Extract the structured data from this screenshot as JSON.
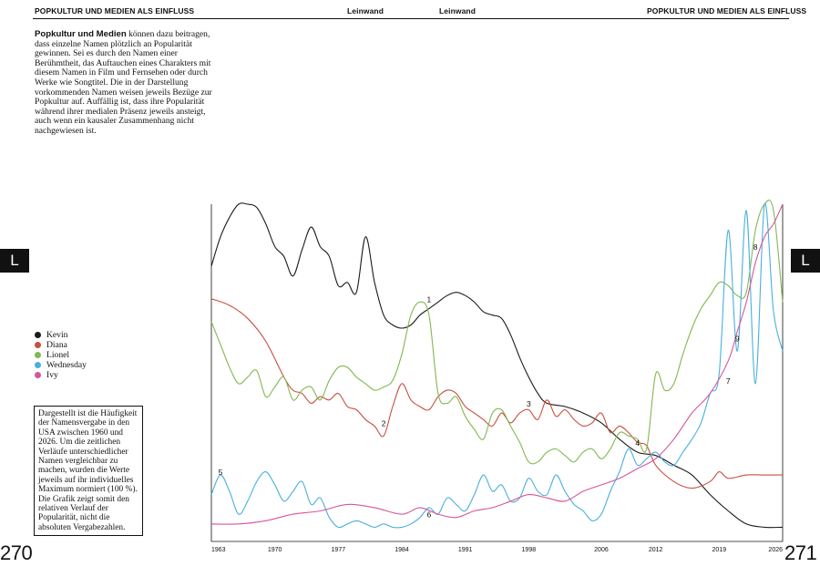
{
  "header": {
    "left": "POPKULTUR UND MEDIEN ALS EINFLUSS",
    "center_left": "Leinwand",
    "center_right": "Leinwand",
    "right": "POPKULTUR UND MEDIEN ALS EINFLUSS"
  },
  "intro": {
    "lead": "Popkultur und Medien",
    "body": " können dazu beitragen, dass einzelne Namen plötzlich an Popularität gewinnen. Sei es durch den Namen einer Berühmtheit, das Auftauchen eines Charakters mit diesem Namen in Film und Fernsehen oder durch Werke wie Songtitel. Die in der Darstellung vorkommenden Namen weisen jeweils Bezüge zur Popkultur auf. Auffällig ist, dass ihre Popularität während ihrer medialen Präsenz jeweils ansteigt, auch wenn ein kausaler Zusammenhang nicht nachgewiesen ist."
  },
  "section_tab": {
    "left": "L",
    "right": "L"
  },
  "note": "Dargestellt ist die Häufigkeit der Namensvergabe in den USA zwischen 1960 und 2026. Um die zeitlichen Verläufe unterschiedlicher Namen vergleichbar zu machen, wurden die Werte jeweils auf ihr individuelles Maximum normiert (100 %). Die Grafik zeigt somit den relativen Verlauf der Popularität, nicht die absoluten Vergabezahlen.",
  "page_numbers": {
    "left": "270",
    "right": "271"
  },
  "colors": {
    "Kevin": "#1a1a1a",
    "Diana": "#c94f3f",
    "Lionel": "#82b850",
    "Wednesday": "#49b0dd",
    "Ivy": "#d6559a"
  },
  "chart_data": {
    "type": "line",
    "x_unit": "year",
    "y_unit": "percent of individual maximum",
    "xlim": [
      1963,
      2026
    ],
    "ylim": [
      0,
      100
    ],
    "x_ticks": [
      1963,
      1970,
      1977,
      1984,
      1991,
      1998,
      2006,
      2012,
      2019,
      2026
    ],
    "grid": false,
    "legend_position": "left",
    "series": [
      {
        "name": "Kevin",
        "color": "#1a1a1a",
        "x": [
          1963,
          1964,
          1965,
          1966,
          1967,
          1968,
          1969,
          1970,
          1971,
          1972,
          1973,
          1974,
          1975,
          1976,
          1977,
          1978,
          1979,
          1980,
          1981,
          1982,
          1983,
          1984,
          1985,
          1986,
          1987,
          1988,
          1989,
          1990,
          1991,
          1992,
          1993,
          1994,
          1995,
          1996,
          1997,
          1998,
          1999,
          2000,
          2002,
          2004,
          2006,
          2008,
          2010,
          2012,
          2014,
          2016,
          2018,
          2020,
          2022,
          2024,
          2026
        ],
        "y": [
          81,
          90,
          96,
          100,
          100,
          99,
          94,
          87,
          84,
          78,
          86,
          93,
          87,
          84,
          75,
          76,
          73,
          90,
          76,
          66,
          63,
          62,
          63,
          66,
          68,
          70,
          72,
          73,
          72,
          70,
          67,
          66,
          65,
          60,
          53,
          47,
          42,
          39,
          38,
          36,
          33,
          28,
          24,
          23,
          20,
          17,
          11,
          6,
          2,
          1,
          1
        ]
      },
      {
        "name": "Diana",
        "color": "#c94f3f",
        "x": [
          1963,
          1965,
          1967,
          1969,
          1971,
          1972,
          1973,
          1974,
          1975,
          1976,
          1977,
          1978,
          1979,
          1980,
          1981,
          1982,
          1983,
          1984,
          1985,
          1986,
          1987,
          1988,
          1989,
          1990,
          1991,
          1992,
          1993,
          1994,
          1995,
          1996,
          1997,
          1998,
          1999,
          2000,
          2001,
          2002,
          2003,
          2004,
          2005,
          2006,
          2007,
          2008,
          2009,
          2010,
          2011,
          2012,
          2014,
          2016,
          2018,
          2019,
          2020,
          2022,
          2024,
          2026
        ],
        "y": [
          71,
          69,
          65,
          58,
          47,
          43,
          42,
          39,
          41,
          40,
          42,
          38,
          37,
          34,
          32,
          29,
          38,
          45,
          40,
          38,
          37,
          41,
          43,
          42,
          38,
          36,
          34,
          32,
          36,
          33,
          36,
          37,
          34,
          40,
          35,
          37,
          34,
          32,
          33,
          36,
          30,
          32,
          30,
          27,
          26,
          20,
          15,
          13,
          15,
          18,
          16,
          17,
          17,
          17
        ]
      },
      {
        "name": "Lionel",
        "color": "#82b850",
        "x": [
          1963,
          1964,
          1965,
          1966,
          1967,
          1968,
          1969,
          1970,
          1971,
          1972,
          1973,
          1974,
          1975,
          1976,
          1977,
          1978,
          1979,
          1980,
          1981,
          1982,
          1983,
          1984,
          1985,
          1986,
          1987,
          1988,
          1989,
          1990,
          1991,
          1992,
          1993,
          1994,
          1995,
          1996,
          1997,
          1998,
          1999,
          2000,
          2001,
          2002,
          2003,
          2004,
          2005,
          2006,
          2007,
          2008,
          2009,
          2010,
          2011,
          2012,
          2013,
          2014,
          2015,
          2016,
          2017,
          2018,
          2019,
          2020,
          2021,
          2022,
          2023,
          2024,
          2025,
          2026
        ],
        "y": [
          64,
          57,
          50,
          45,
          47,
          49,
          41,
          44,
          47,
          40,
          43,
          44,
          40,
          46,
          50,
          50,
          47,
          45,
          43,
          44,
          46,
          54,
          66,
          70,
          66,
          42,
          39,
          41,
          35,
          31,
          28,
          36,
          37,
          32,
          27,
          21,
          21,
          24,
          25,
          23,
          21,
          24,
          25,
          22,
          25,
          30,
          29,
          28,
          25,
          48,
          43,
          45,
          54,
          62,
          68,
          72,
          76,
          75,
          72,
          73,
          92,
          100,
          98,
          70
        ]
      },
      {
        "name": "Wednesday",
        "color": "#49b0dd",
        "x": [
          1963,
          1964,
          1965,
          1966,
          1967,
          1968,
          1969,
          1970,
          1971,
          1972,
          1973,
          1974,
          1975,
          1976,
          1977,
          1978,
          1979,
          1980,
          1981,
          1982,
          1983,
          1984,
          1985,
          1986,
          1987,
          1988,
          1989,
          1990,
          1991,
          1992,
          1993,
          1994,
          1995,
          1996,
          1997,
          1998,
          1999,
          2000,
          2001,
          2002,
          2003,
          2004,
          2005,
          2006,
          2007,
          2008,
          2009,
          2010,
          2011,
          2012,
          2013,
          2014,
          2015,
          2016,
          2017,
          2018,
          2019,
          2020,
          2021,
          2022,
          2023,
          2024,
          2025,
          2026
        ],
        "y": [
          11,
          17,
          12,
          5,
          9,
          15,
          18,
          14,
          9,
          12,
          15,
          8,
          10,
          4,
          1,
          2,
          3,
          2,
          1,
          2,
          1,
          1,
          2,
          4,
          7,
          5,
          10,
          8,
          6,
          11,
          17,
          12,
          14,
          9,
          10,
          16,
          12,
          11,
          17,
          12,
          8,
          6,
          3,
          5,
          12,
          18,
          25,
          20,
          22,
          24,
          21,
          20,
          24,
          28,
          33,
          42,
          48,
          92,
          55,
          98,
          45,
          100,
          67,
          55
        ]
      },
      {
        "name": "Ivy",
        "color": "#d6559a",
        "x": [
          1963,
          1966,
          1969,
          1972,
          1975,
          1978,
          1981,
          1984,
          1986,
          1988,
          1990,
          1992,
          1994,
          1996,
          1998,
          2000,
          2002,
          2004,
          2006,
          2008,
          2010,
          2012,
          2014,
          2016,
          2018,
          2020,
          2021,
          2022,
          2023,
          2024,
          2025,
          2026
        ],
        "y": [
          2,
          2,
          3,
          5,
          6,
          8,
          7,
          5,
          7,
          5,
          4,
          6,
          7,
          9,
          11,
          10,
          9,
          12,
          14,
          16,
          19,
          22,
          28,
          36,
          42,
          52,
          61,
          70,
          82,
          90,
          94,
          100
        ]
      }
    ],
    "annotations": [
      {
        "label": "1",
        "x": 1987,
        "y": 70,
        "series": "Kevin"
      },
      {
        "label": "2",
        "x": 1982,
        "y": 32,
        "series": "Diana"
      },
      {
        "label": "3",
        "x": 1998,
        "y": 38,
        "series": "Diana"
      },
      {
        "label": "4",
        "x": 2010,
        "y": 26,
        "series": "Lionel"
      },
      {
        "label": "5",
        "x": 1964,
        "y": 17,
        "series": "Wednesday"
      },
      {
        "label": "6",
        "x": 1987,
        "y": 4,
        "series": "Ivy"
      },
      {
        "label": "7",
        "x": 2020,
        "y": 45,
        "series": "Ivy"
      },
      {
        "label": "8",
        "x": 2023,
        "y": 86,
        "series": "Ivy"
      },
      {
        "label": "9",
        "x": 2021,
        "y": 58,
        "series": "Ivy"
      }
    ]
  }
}
